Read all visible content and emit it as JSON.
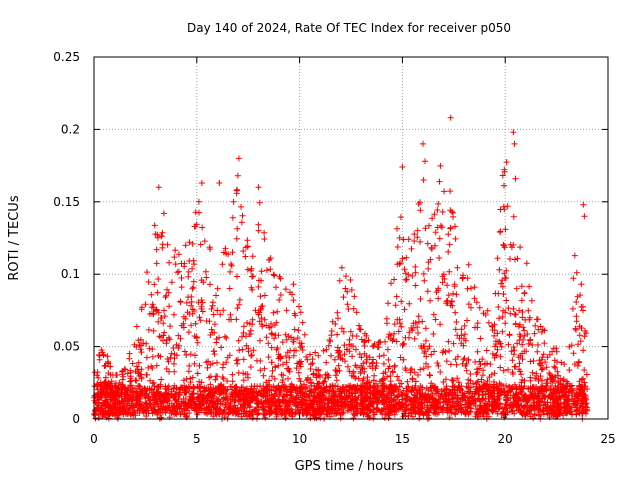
{
  "chart_data": {
    "type": "scatter",
    "title": "Day 140 of 2024, Rate Of TEC Index for receiver p050",
    "xlabel": "GPS time / hours",
    "ylabel": "ROTI / TECUs",
    "xlim": [
      0,
      25
    ],
    "ylim": [
      0,
      0.25
    ],
    "xticks": [
      0,
      5,
      10,
      15,
      20,
      25
    ],
    "yticks": [
      0,
      0.05,
      0.1,
      0.15,
      0.2,
      0.25
    ],
    "xtick_labels": [
      "0",
      "5",
      "10",
      "15",
      "20",
      "25"
    ],
    "ytick_labels": [
      "0",
      "0.05",
      "0.1",
      "0.15",
      "0.2",
      "0.25"
    ],
    "grid": true,
    "marker": "+",
    "color": "#ff0000",
    "x_data_range": [
      0,
      24
    ],
    "series": [
      {
        "name": "ROTI",
        "envelope_hours": [
          0,
          0.5,
          1,
          1.5,
          2,
          2.5,
          3,
          3.5,
          4,
          4.5,
          5,
          5.5,
          6,
          6.5,
          7,
          7.5,
          8,
          8.5,
          9,
          9.5,
          10,
          10.5,
          11,
          11.5,
          12,
          12.5,
          13,
          13.5,
          14,
          14.5,
          15,
          15.5,
          16,
          16.5,
          17,
          17.5,
          18,
          18.5,
          19,
          19.5,
          20,
          20.5,
          21,
          21.5,
          22,
          22.5,
          23,
          23.5,
          24
        ],
        "envelope_roti": [
          0.045,
          0.05,
          0.03,
          0.035,
          0.06,
          0.1,
          0.14,
          0.125,
          0.12,
          0.135,
          0.15,
          0.13,
          0.1,
          0.13,
          0.17,
          0.12,
          0.155,
          0.12,
          0.1,
          0.11,
          0.08,
          0.05,
          0.045,
          0.06,
          0.11,
          0.1,
          0.07,
          0.05,
          0.06,
          0.1,
          0.17,
          0.12,
          0.185,
          0.14,
          0.19,
          0.14,
          0.12,
          0.1,
          0.07,
          0.09,
          0.195,
          0.13,
          0.12,
          0.08,
          0.06,
          0.05,
          0.04,
          0.14,
          0.05
        ],
        "highlights": [
          {
            "x": 3.15,
            "y": 0.16
          },
          {
            "x": 3.4,
            "y": 0.142
          },
          {
            "x": 5.1,
            "y": 0.15
          },
          {
            "x": 5.25,
            "y": 0.163
          },
          {
            "x": 6.1,
            "y": 0.163
          },
          {
            "x": 7.05,
            "y": 0.18
          },
          {
            "x": 7.0,
            "y": 0.168
          },
          {
            "x": 8.0,
            "y": 0.16
          },
          {
            "x": 15.0,
            "y": 0.174
          },
          {
            "x": 16.0,
            "y": 0.19
          },
          {
            "x": 16.1,
            "y": 0.178
          },
          {
            "x": 17.35,
            "y": 0.208
          },
          {
            "x": 20.4,
            "y": 0.198
          },
          {
            "x": 20.45,
            "y": 0.19
          },
          {
            "x": 20.5,
            "y": 0.166
          },
          {
            "x": 23.8,
            "y": 0.148
          },
          {
            "x": 23.85,
            "y": 0.14
          }
        ]
      }
    ]
  }
}
